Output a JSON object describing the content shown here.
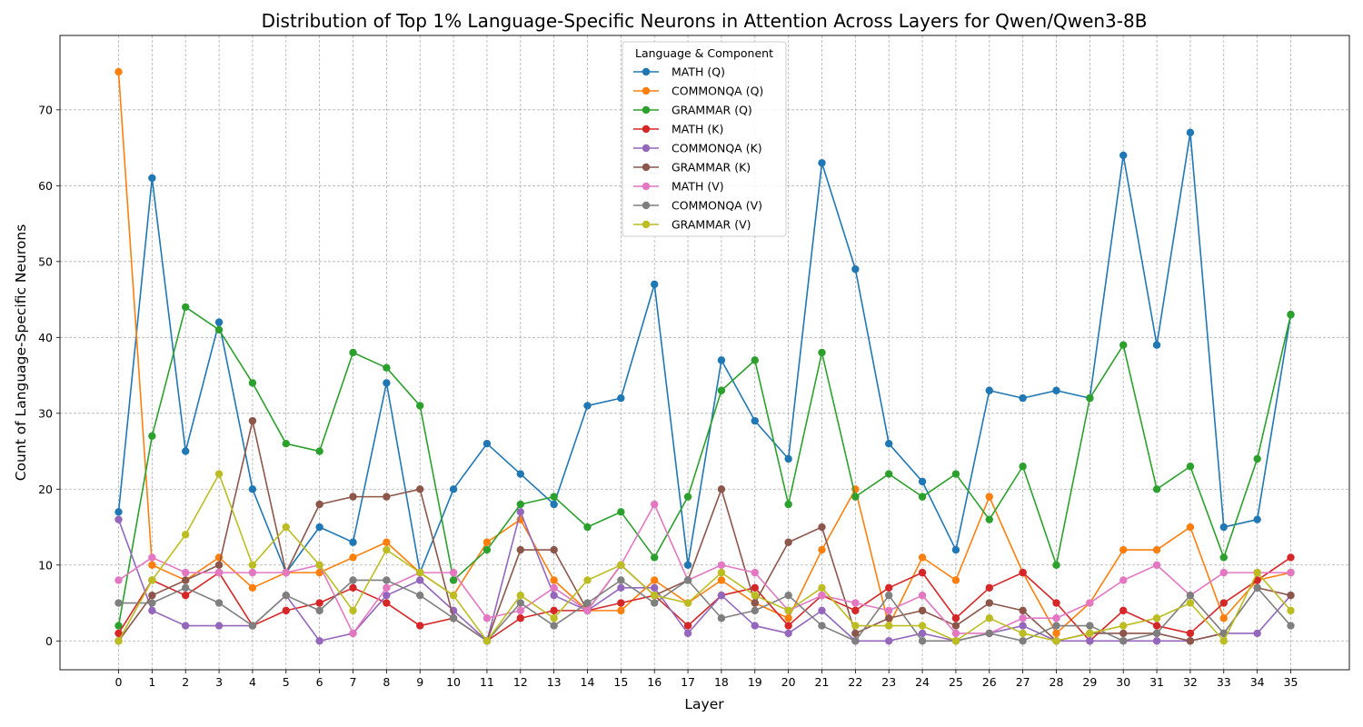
{
  "chart_data": {
    "type": "line",
    "title": "Distribution of Top 1% Language-Specific Neurons in Attention Across Layers for Qwen/Qwen3-8B",
    "xlabel": "Layer",
    "ylabel": "Count of Language-Specific Neurons",
    "x": [
      0,
      1,
      2,
      3,
      4,
      5,
      6,
      7,
      8,
      9,
      10,
      11,
      12,
      13,
      14,
      15,
      16,
      17,
      18,
      19,
      20,
      21,
      22,
      23,
      24,
      25,
      26,
      27,
      28,
      29,
      30,
      31,
      32,
      33,
      34,
      35
    ],
    "xticks": [
      "0",
      "1",
      "2",
      "3",
      "4",
      "5",
      "6",
      "7",
      "8",
      "9",
      "10",
      "11",
      "12",
      "13",
      "14",
      "15",
      "16",
      "17",
      "18",
      "19",
      "20",
      "21",
      "22",
      "23",
      "24",
      "25",
      "26",
      "27",
      "28",
      "29",
      "30",
      "31",
      "32",
      "33",
      "34",
      "35"
    ],
    "yticks": [
      "0",
      "10",
      "20",
      "30",
      "40",
      "50",
      "60",
      "70"
    ],
    "xlim": [
      -1.75,
      36.75
    ],
    "ylim": [
      -3.8,
      79.8
    ],
    "grid": true,
    "legend_title": "Language & Component",
    "legend_position": "top-center",
    "series": [
      {
        "name": "MATH (Q)",
        "color": "#1f77b4",
        "values": [
          17,
          61,
          25,
          42,
          20,
          9,
          15,
          13,
          34,
          9,
          20,
          26,
          22,
          18,
          31,
          32,
          47,
          10,
          37,
          29,
          24,
          63,
          49,
          26,
          21,
          12,
          33,
          32,
          33,
          32,
          64,
          39,
          67,
          15,
          16,
          43
        ]
      },
      {
        "name": "COMMONQA (Q)",
        "color": "#ff7f0e",
        "values": [
          75,
          10,
          8,
          11,
          7,
          9,
          9,
          11,
          13,
          9,
          6,
          13,
          16,
          8,
          4,
          4,
          8,
          5,
          8,
          5,
          3,
          12,
          20,
          2,
          11,
          8,
          19,
          9,
          1,
          5,
          12,
          12,
          15,
          3,
          8,
          9
        ]
      },
      {
        "name": "GRAMMAR (Q)",
        "color": "#2ca02c",
        "values": [
          2,
          27,
          44,
          41,
          34,
          26,
          25,
          38,
          36,
          31,
          8,
          12,
          18,
          19,
          15,
          17,
          11,
          19,
          33,
          37,
          18,
          38,
          19,
          22,
          19,
          22,
          16,
          23,
          10,
          32,
          39,
          20,
          23,
          11,
          24,
          43
        ]
      },
      {
        "name": "MATH (K)",
        "color": "#d62728",
        "values": [
          1,
          8,
          6,
          9,
          2,
          4,
          5,
          7,
          5,
          2,
          3,
          0,
          3,
          4,
          4,
          5,
          6,
          2,
          6,
          7,
          2,
          6,
          4,
          7,
          9,
          3,
          7,
          9,
          5,
          0,
          4,
          2,
          1,
          5,
          8,
          11
        ]
      },
      {
        "name": "COMMONQA (K)",
        "color": "#9467bd",
        "values": [
          16,
          4,
          2,
          2,
          2,
          6,
          0,
          1,
          6,
          8,
          4,
          0,
          17,
          6,
          4,
          7,
          7,
          1,
          6,
          2,
          1,
          4,
          0,
          0,
          1,
          0,
          1,
          2,
          0,
          0,
          0,
          0,
          0,
          1,
          1,
          6
        ]
      },
      {
        "name": "GRAMMAR (K)",
        "color": "#8c564b",
        "values": [
          0,
          6,
          8,
          10,
          29,
          9,
          18,
          19,
          19,
          20,
          3,
          0,
          12,
          12,
          4,
          10,
          6,
          8,
          20,
          5,
          13,
          15,
          1,
          3,
          4,
          2,
          5,
          4,
          0,
          1,
          1,
          1,
          0,
          1,
          7,
          6
        ]
      },
      {
        "name": "MATH (V)",
        "color": "#e377c2",
        "values": [
          8,
          11,
          9,
          9,
          9,
          9,
          10,
          1,
          7,
          9,
          9,
          3,
          4,
          7,
          4,
          10,
          18,
          8,
          10,
          9,
          4,
          6,
          5,
          4,
          6,
          1,
          1,
          3,
          3,
          5,
          8,
          10,
          6,
          9,
          9,
          9
        ]
      },
      {
        "name": "COMMONQA (V)",
        "color": "#7f7f7f",
        "values": [
          5,
          5,
          7,
          5,
          2,
          6,
          4,
          8,
          8,
          6,
          3,
          0,
          5,
          2,
          5,
          8,
          5,
          8,
          3,
          4,
          6,
          2,
          0,
          6,
          0,
          0,
          1,
          0,
          2,
          2,
          0,
          1,
          6,
          1,
          7,
          2
        ]
      },
      {
        "name": "GRAMMAR (V)",
        "color": "#bcbd22",
        "values": [
          0,
          8,
          14,
          22,
          10,
          15,
          10,
          4,
          12,
          9,
          6,
          0,
          6,
          3,
          8,
          10,
          6,
          5,
          9,
          6,
          4,
          7,
          2,
          2,
          2,
          0,
          3,
          1,
          0,
          1,
          2,
          3,
          5,
          0,
          9,
          4
        ]
      }
    ]
  }
}
